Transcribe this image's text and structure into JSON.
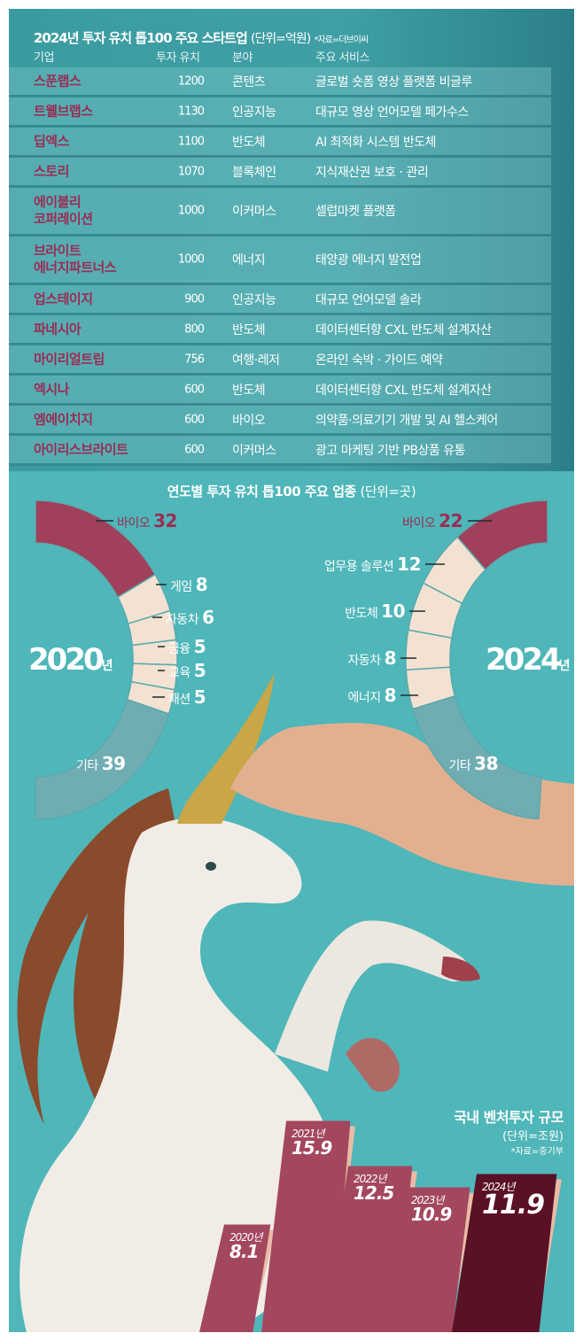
{
  "table": {
    "title": "2024년 투자 유치 톱100 주요 스타트업",
    "unit": "(단위=억원)",
    "source": "*자료=더브이씨",
    "headers": [
      "기업",
      "투자 유치",
      "분야",
      "주요 서비스"
    ],
    "rows": [
      {
        "company": "스푼랩스",
        "investment": "1200",
        "field": "콘텐츠",
        "service": "글로벌 숏폼 영상 플랫폼 비글루"
      },
      {
        "company": "트웰브랩스",
        "investment": "1130",
        "field": "인공지능",
        "service": "대규모 영상 언어모델 페가수스"
      },
      {
        "company": "딥엑스",
        "investment": "1100",
        "field": "반도체",
        "service": "AI 최적화 시스템 반도체"
      },
      {
        "company": "스토리",
        "investment": "1070",
        "field": "블록체인",
        "service": "지식재산권 보호 · 관리"
      },
      {
        "company": "에이블리\n코퍼레이션",
        "investment": "1000",
        "field": "이커머스",
        "service": "셀럽마켓 플랫폼"
      },
      {
        "company": "브라이트\n에너지파트너스",
        "investment": "1000",
        "field": "에너지",
        "service": "태양광 에너지 발전업"
      },
      {
        "company": "업스테이지",
        "investment": "900",
        "field": "인공지능",
        "service": "대규모 언어모델 솔라"
      },
      {
        "company": "파네시아",
        "investment": "800",
        "field": "반도체",
        "service": "데이터센터향 CXL 반도체 설계자산"
      },
      {
        "company": "마이리얼트립",
        "investment": "756",
        "field": "여행·레저",
        "service": "온라인 숙박 · 가이드 예약"
      },
      {
        "company": "엑시나",
        "investment": "600",
        "field": "반도체",
        "service": "데이터센터향 CXL 반도체 설계자산"
      },
      {
        "company": "엠에이치지",
        "investment": "600",
        "field": "바이오",
        "service": "의약품·의료기기 개발 및 AI 헬스케어"
      },
      {
        "company": "아이리스브라이트",
        "investment": "600",
        "field": "이커머스",
        "service": "광고 마케팅 기반 PB상품 유통"
      }
    ]
  },
  "colors": {
    "background": "#4fb6b9",
    "bio": "#a0405a",
    "sectors": "#f3e2d2",
    "other": "#6fadb3",
    "bar": "#a3475e",
    "bar_highlight": "#5a1025",
    "company_text": "#9a2c54"
  },
  "chart_data": [
    {
      "type": "pie",
      "title": "연도별 투자 유치 톱100 주요 업종",
      "unit": "(단위=곳)",
      "label": "2020",
      "label_suffix": "년",
      "slices": [
        {
          "name": "바이오",
          "value": 32
        },
        {
          "name": "게임",
          "value": 8
        },
        {
          "name": "자동차",
          "value": 6
        },
        {
          "name": "금융",
          "value": 5
        },
        {
          "name": "교육",
          "value": 5
        },
        {
          "name": "패션",
          "value": 5
        },
        {
          "name": "기타",
          "value": 39
        }
      ]
    },
    {
      "type": "pie",
      "label": "2024",
      "label_suffix": "년",
      "slices": [
        {
          "name": "바이오",
          "value": 22
        },
        {
          "name": "업무용 솔루션",
          "value": 12
        },
        {
          "name": "반도체",
          "value": 10
        },
        {
          "name": "자동차",
          "value": 8
        },
        {
          "name": "에너지",
          "value": 8
        },
        {
          "name": "기타",
          "value": 38
        }
      ]
    },
    {
      "type": "bar",
      "title": "국내 벤처투자 규모",
      "unit": "(단위=조원)",
      "source": "*자료=중기부",
      "categories": [
        "2020년",
        "2021년",
        "2022년",
        "2023년",
        "2024년"
      ],
      "values": [
        8.1,
        15.9,
        12.5,
        10.9,
        11.9
      ],
      "highlight": "2024년"
    }
  ]
}
